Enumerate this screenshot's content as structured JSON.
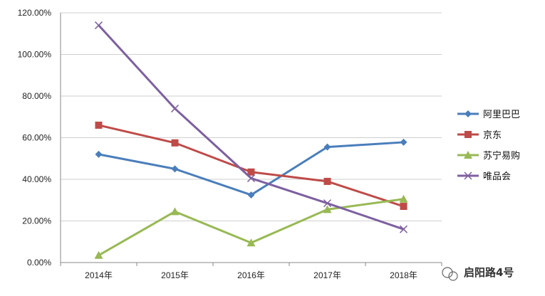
{
  "chart_data": {
    "type": "line",
    "categories": [
      "2014年",
      "2015年",
      "2016年",
      "2017年",
      "2018年"
    ],
    "ylim": [
      0,
      1.2
    ],
    "y_ticks": [
      "0.00%",
      "20.00%",
      "40.00%",
      "60.00%",
      "80.00%",
      "100.00%",
      "120.00%"
    ],
    "grid": true,
    "legend_position": "right",
    "series": [
      {
        "name": "阿里巴巴",
        "values": [
          0.52,
          0.45,
          0.325,
          0.555,
          0.578
        ],
        "color": "#4a7ebb",
        "marker": "diamond"
      },
      {
        "name": "京东",
        "values": [
          0.66,
          0.575,
          0.435,
          0.39,
          0.27
        ],
        "color": "#be4b48",
        "marker": "square"
      },
      {
        "name": "苏宁易购",
        "values": [
          0.035,
          0.245,
          0.095,
          0.255,
          0.305
        ],
        "color": "#98b954",
        "marker": "triangle"
      },
      {
        "name": "唯品会",
        "values": [
          1.14,
          0.74,
          0.405,
          0.285,
          0.16
        ],
        "color": "#7d60a0",
        "marker": "x"
      }
    ]
  },
  "watermark": {
    "text": "启阳路4号",
    "icon": "wechat-icon"
  }
}
